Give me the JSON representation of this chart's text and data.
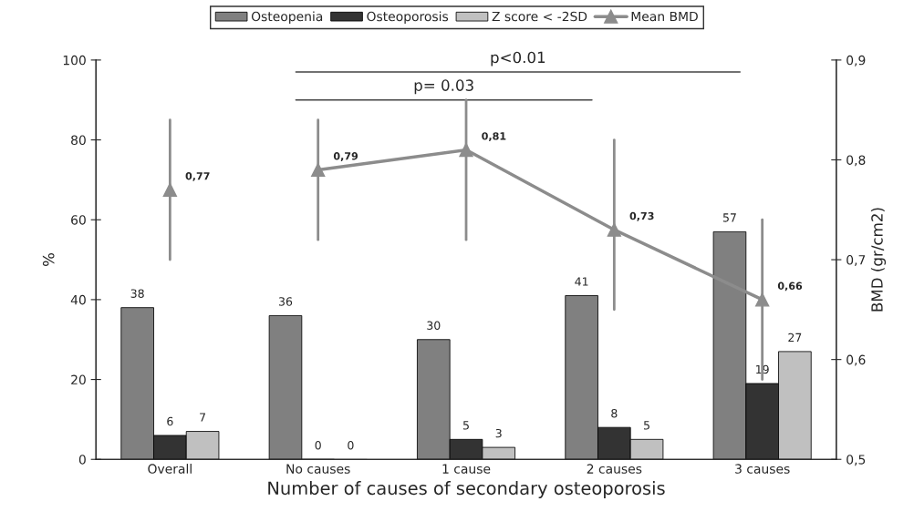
{
  "chart_data": {
    "type": "bar",
    "xlabel": "Number of causes of secondary osteoporosis",
    "ylabel": "%",
    "y2label": "BMD (gr/cm2)",
    "categories": [
      "Overall",
      "No causes",
      "1 cause",
      "2 causes",
      "3 causes"
    ],
    "series": [
      {
        "name": "Osteopenia",
        "color": "#808080",
        "values": [
          38,
          36,
          30,
          41,
          57
        ]
      },
      {
        "name": "Osteoporosis",
        "color": "#333333",
        "values": [
          6,
          0,
          5,
          8,
          19
        ]
      },
      {
        "name": "Z score < -2SD",
        "color": "#c0c0c0",
        "values": [
          7,
          0,
          3,
          5,
          27
        ]
      },
      {
        "name": "Mean BMD",
        "type": "line",
        "axis": "y2",
        "color": "#8c8c8c",
        "marker": "triangle",
        "values": [
          null,
          0.79,
          0.81,
          0.73,
          0.66
        ],
        "errors": [
          null,
          [
            0.72,
            0.84
          ],
          [
            0.72,
            0.86
          ],
          [
            0.65,
            0.82
          ],
          [
            0.58,
            0.74
          ]
        ],
        "value_labels": [
          null,
          "0,79",
          "0,81",
          "0,73",
          "0,66"
        ]
      },
      {
        "type": "scatter",
        "axis": "y2",
        "color": "#8c8c8c",
        "marker": "triangle",
        "values": [
          0.77,
          null,
          null,
          null,
          null
        ],
        "errors": [
          [
            0.7,
            0.84
          ],
          null,
          null,
          null,
          null
        ],
        "value_labels": [
          "0,77",
          null,
          null,
          null,
          null
        ]
      }
    ],
    "data_labels": true,
    "ylim": [
      0,
      100
    ],
    "yticks": [
      0,
      20,
      40,
      60,
      80,
      100
    ],
    "y2lim": [
      0.5,
      0.9
    ],
    "y2ticks": [
      {
        "value": 0.5,
        "label": "0,5"
      },
      {
        "value": 0.6,
        "label": "0,6"
      },
      {
        "value": 0.7,
        "label": "0,7"
      },
      {
        "value": 0.8,
        "label": "0,8"
      },
      {
        "value": 0.9,
        "label": "0,9"
      }
    ],
    "annotations": [
      "p<0.01",
      "p= 0.03"
    ],
    "grid": false,
    "legend": "top"
  }
}
